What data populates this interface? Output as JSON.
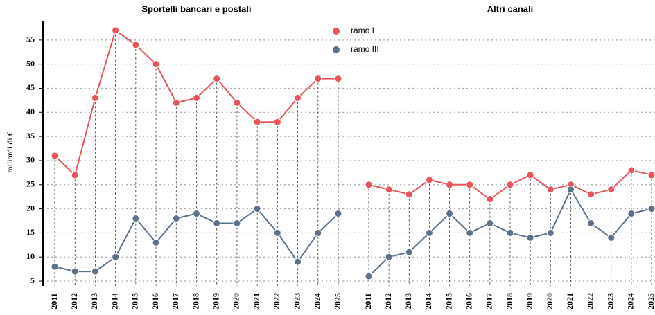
{
  "chart_data": [
    {
      "type": "line",
      "title": "Sportelli bancari e postali",
      "y_label": "miliardi di €",
      "categories": [
        "2011",
        "2012",
        "2013",
        "2014",
        "2015",
        "2016",
        "2017",
        "2018",
        "2019",
        "2020",
        "2021",
        "2022",
        "2023",
        "2024",
        "2025"
      ],
      "series": [
        {
          "name": "ramo I",
          "color": "#e9545a",
          "values": [
            31,
            27,
            43,
            57,
            54,
            50,
            42,
            43,
            47,
            42,
            38,
            38,
            43,
            47,
            47
          ]
        },
        {
          "name": "ramo III",
          "color": "#5b7189",
          "values": [
            8,
            7,
            7,
            10,
            18,
            13,
            18,
            19,
            17,
            17,
            20,
            15,
            9,
            15,
            19
          ]
        }
      ],
      "ylim": [
        4,
        59
      ],
      "yticks": [
        5,
        10,
        15,
        20,
        25,
        30,
        35,
        40,
        45,
        50,
        55
      ],
      "grid": true
    },
    {
      "type": "line",
      "title": "Altri canali",
      "categories": [
        "2011",
        "2012",
        "2013",
        "2014",
        "2015",
        "2016",
        "2017",
        "2018",
        "2019",
        "2020",
        "2021",
        "2022",
        "2023",
        "2024",
        "2025"
      ],
      "series": [
        {
          "color": "#e9545a",
          "values": [
            25,
            24,
            23,
            26,
            25,
            25,
            22,
            25,
            27,
            24,
            25,
            23,
            24,
            28,
            27
          ]
        },
        {
          "color": "#5b7189",
          "values": [
            6,
            10,
            11,
            15,
            19,
            15,
            17,
            15,
            14,
            15,
            24,
            17,
            14,
            19,
            20
          ]
        }
      ],
      "ylim": [
        4,
        59
      ],
      "yticks": [
        5,
        10,
        15,
        20,
        25,
        30,
        35,
        40,
        45,
        50,
        55
      ],
      "grid": true
    }
  ]
}
